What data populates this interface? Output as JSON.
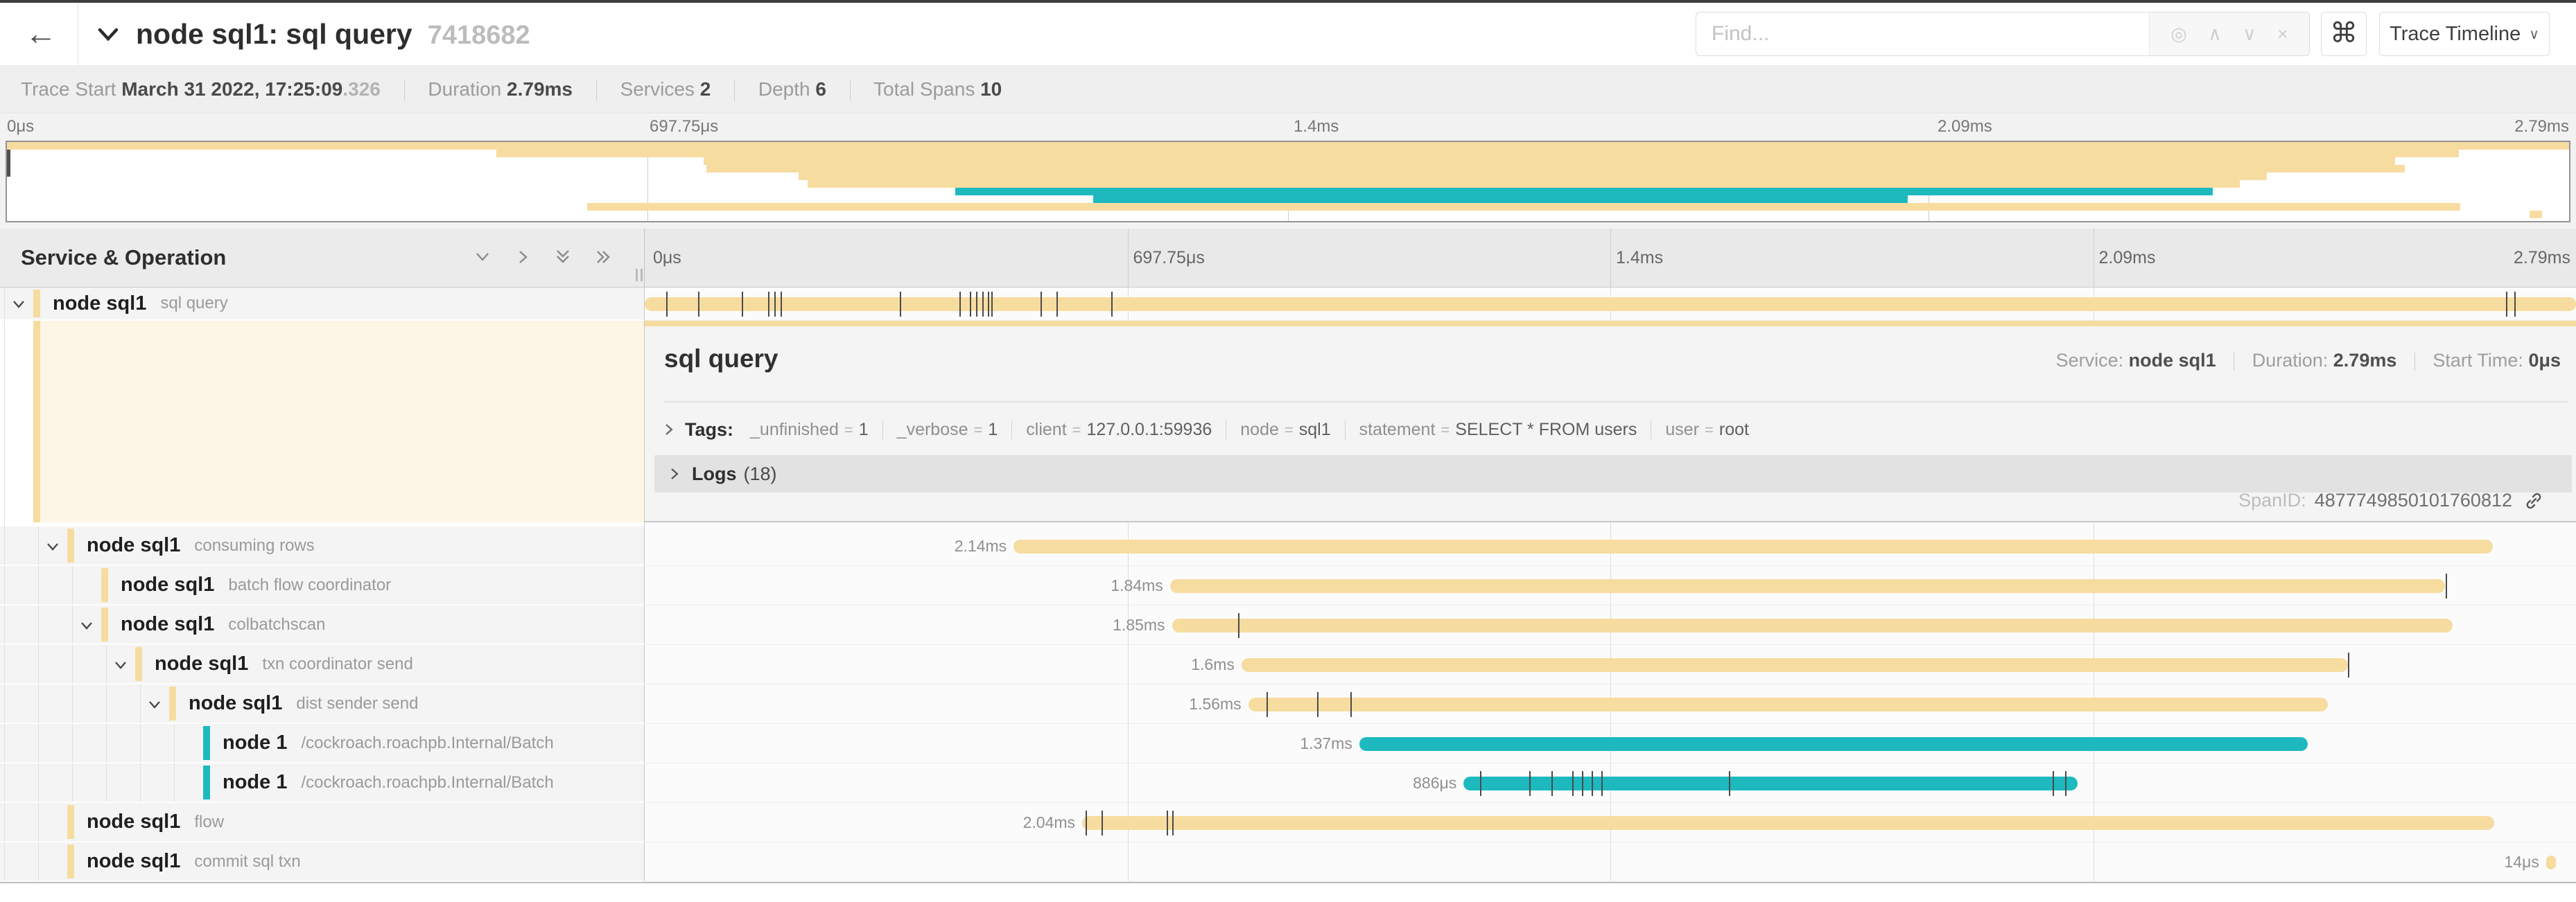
{
  "header": {
    "back_icon": "←",
    "title": "node sql1: sql query",
    "trace_id_short": "7418682",
    "find_placeholder": "Find...",
    "locate_icon": "◎",
    "prev_icon": "∧",
    "next_icon": "∨",
    "clear_icon": "×",
    "shortcut_icon": "⌘",
    "view_button_label": "Trace Timeline",
    "view_button_caret": "∨"
  },
  "summary": {
    "trace_start_label": "Trace Start",
    "trace_start_value": "March 31 2022, 17:25:09",
    "trace_start_fraction": ".326",
    "duration_label": "Duration",
    "duration_value": "2.79ms",
    "services_label": "Services",
    "services_value": "2",
    "depth_label": "Depth",
    "depth_value": "6",
    "total_spans_label": "Total Spans",
    "total_spans_value": "10"
  },
  "minimap": {
    "labels": [
      "0μs",
      "697.75μs",
      "1.4ms",
      "2.09ms",
      "2.79ms"
    ]
  },
  "grid": {
    "left_header": "Service & Operation",
    "ruler_labels": [
      "0μs",
      "697.75μs",
      "1.4ms",
      "2.09ms",
      "2.79ms"
    ]
  },
  "detail": {
    "title": "sql query",
    "service_label": "Service:",
    "service_value": "node sql1",
    "duration_label": "Duration:",
    "duration_value": "2.79ms",
    "start_label": "Start Time:",
    "start_value": "0μs",
    "tags_label": "Tags:",
    "tags": [
      {
        "key": "_unfinished",
        "value": "1"
      },
      {
        "key": "_verbose",
        "value": "1"
      },
      {
        "key": "client",
        "value": "127.0.0.1:59936"
      },
      {
        "key": "node",
        "value": "sql1"
      },
      {
        "key": "statement",
        "value": "SELECT * FROM users"
      },
      {
        "key": "user",
        "value": "root"
      }
    ],
    "logs_label": "Logs",
    "logs_count": "(18)",
    "spanid_label": "SpanID:",
    "spanid_value": "4877749850101760812"
  },
  "colors": {
    "tan": "#f7dca0",
    "teal": "#1db9bf",
    "selected_bg": "#fdf6e6",
    "tick": "#4a4a4a"
  },
  "spans": [
    {
      "service": "node sql1",
      "operation": "sql query",
      "depth": 0,
      "expandable": true,
      "color": "tan",
      "duration_label": "",
      "start": 0.0,
      "width": 1.0,
      "ticks": [
        0.0113,
        0.0275,
        0.0501,
        0.0638,
        0.0673,
        0.0704,
        0.1322,
        0.1631,
        0.1683,
        0.1717,
        0.1747,
        0.1775,
        0.1796,
        0.205,
        0.2132,
        0.2414,
        0.9637,
        0.968
      ]
    },
    {
      "service": "node sql1",
      "operation": "consuming rows",
      "depth": 1,
      "expandable": true,
      "color": "tan",
      "duration_label": "2.14ms",
      "start": 0.191,
      "width": 0.766,
      "ticks": []
    },
    {
      "service": "node sql1",
      "operation": "batch flow coordinator",
      "depth": 2,
      "expandable": false,
      "color": "tan",
      "duration_label": "1.84ms",
      "start": 0.272,
      "width": 0.66,
      "ticks": [
        0.9324
      ]
    },
    {
      "service": "node sql1",
      "operation": "colbatchscan",
      "depth": 2,
      "expandable": true,
      "color": "tan",
      "duration_label": "1.85ms",
      "start": 0.273,
      "width": 0.663,
      "ticks": [
        0.3074
      ]
    },
    {
      "service": "node sql1",
      "operation": "txn coordinator send",
      "depth": 3,
      "expandable": true,
      "color": "tan",
      "duration_label": "1.6ms",
      "start": 0.309,
      "width": 0.573,
      "ticks": [
        0.882
      ]
    },
    {
      "service": "node sql1",
      "operation": "dist sender send",
      "depth": 4,
      "expandable": true,
      "color": "tan",
      "duration_label": "1.56ms",
      "start": 0.3125,
      "width": 0.559,
      "ticks": [
        0.3221,
        0.3482,
        0.3654
      ]
    },
    {
      "service": "node 1",
      "operation": "/cockroach.roachpb.Internal/Batch",
      "depth": 5,
      "expandable": false,
      "color": "teal",
      "duration_label": "1.37ms",
      "start": 0.37,
      "width": 0.491,
      "ticks": []
    },
    {
      "service": "node 1",
      "operation": "/cockroach.roachpb.Internal/Batch",
      "depth": 5,
      "expandable": false,
      "color": "teal",
      "duration_label": "886μs",
      "start": 0.424,
      "width": 0.318,
      "ticks": [
        0.4324,
        0.4579,
        0.4694,
        0.4802,
        0.4853,
        0.4904,
        0.4955,
        0.5612,
        0.7289,
        0.7353
      ]
    },
    {
      "service": "node sql1",
      "operation": "flow",
      "depth": 1,
      "expandable": false,
      "color": "tan",
      "duration_label": "2.04ms",
      "start": 0.2265,
      "width": 0.731,
      "ticks": [
        0.2283,
        0.2366,
        0.2704,
        0.273
      ]
    },
    {
      "service": "node sql1",
      "operation": "commit sql txn",
      "depth": 1,
      "expandable": false,
      "color": "tan",
      "duration_label": "14μs",
      "start": 0.9845,
      "width": 0.005,
      "ticks": []
    }
  ]
}
